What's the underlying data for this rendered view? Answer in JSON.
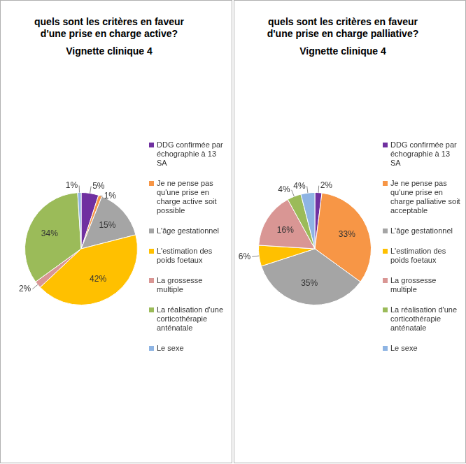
{
  "chart_data": [
    {
      "type": "pie",
      "title": "quels sont les critères en faveur d'une prise en charge active?",
      "subtitle": "Vignette clinique 4",
      "categories": [
        "DDG confirmée par échographie à 13 SA",
        "Je ne pense pas qu'une prise en charge active soit possible",
        "L'âge gestationnel",
        "L'estimation des poids foetaux",
        "La grossesse multiple",
        "La réalisation d'une corticothérapie anténatale",
        "Le sexe"
      ],
      "values": [
        5,
        1,
        15,
        42,
        2,
        34,
        1
      ],
      "value_labels": [
        "5%",
        "1%",
        "15%",
        "42%",
        "2%",
        "34%",
        "1%"
      ],
      "colors": [
        "#7030a0",
        "#f79646",
        "#a5a5a5",
        "#ffc000",
        "#d99694",
        "#9bbb59",
        "#8eb4e3"
      ],
      "data_labels": true,
      "legend": "right"
    },
    {
      "type": "pie",
      "title": "quels sont les critères en faveur d'une prise en charge palliative?",
      "subtitle": "Vignette clinique 4",
      "categories": [
        "DDG confirmée par échographie à 13 SA",
        "Je ne pense pas qu'une prise en charge palliative soit acceptable",
        "L'âge gestationnel",
        "L'estimation des poids foetaux",
        "La grossesse multiple",
        "La réalisation d'une corticothérapie anténatale",
        "Le sexe"
      ],
      "values": [
        2,
        33,
        35,
        6,
        16,
        4,
        4
      ],
      "value_labels": [
        "2%",
        "33%",
        "35%",
        "6%",
        "16%",
        "4%",
        "4%"
      ],
      "colors": [
        "#7030a0",
        "#f79646",
        "#a5a5a5",
        "#ffc000",
        "#d99694",
        "#9bbb59",
        "#8eb4e3"
      ],
      "data_labels": true,
      "legend": "right"
    }
  ]
}
